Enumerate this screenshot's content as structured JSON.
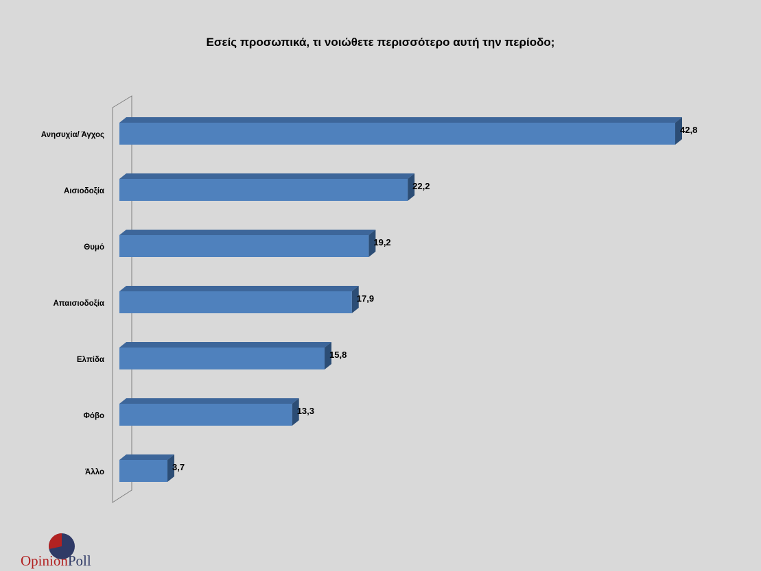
{
  "chart_data": {
    "type": "bar",
    "orientation": "horizontal",
    "title": "Εσείς προσωπικά, τι νοιώθετε περισσότερο αυτή την περίοδο;",
    "categories": [
      "Ανησυχία/ Άγχος",
      "Αισιοδοξία",
      "Θυμό",
      "Απαισιοδοξία",
      "Ελπίδα",
      "Φόβο",
      "Άλλο"
    ],
    "values": [
      42.8,
      22.2,
      19.2,
      17.9,
      15.8,
      13.3,
      3.7
    ],
    "value_labels": [
      "42,8",
      "22,2",
      "19,2",
      "17,9",
      "15,8",
      "13,3",
      "3,7"
    ],
    "xlim": [
      0,
      45
    ],
    "grid": false,
    "legend": "none",
    "colors": {
      "bar_front": "#4f81bd",
      "bar_top": "#3d669a",
      "bar_side": "#2c4d75",
      "background": "#d9d9d9"
    },
    "style": "3d"
  },
  "logo": {
    "word1": "Opinion",
    "word2": "Poll",
    "colors": {
      "red": "#b22222",
      "navy": "#2f3a66"
    }
  }
}
